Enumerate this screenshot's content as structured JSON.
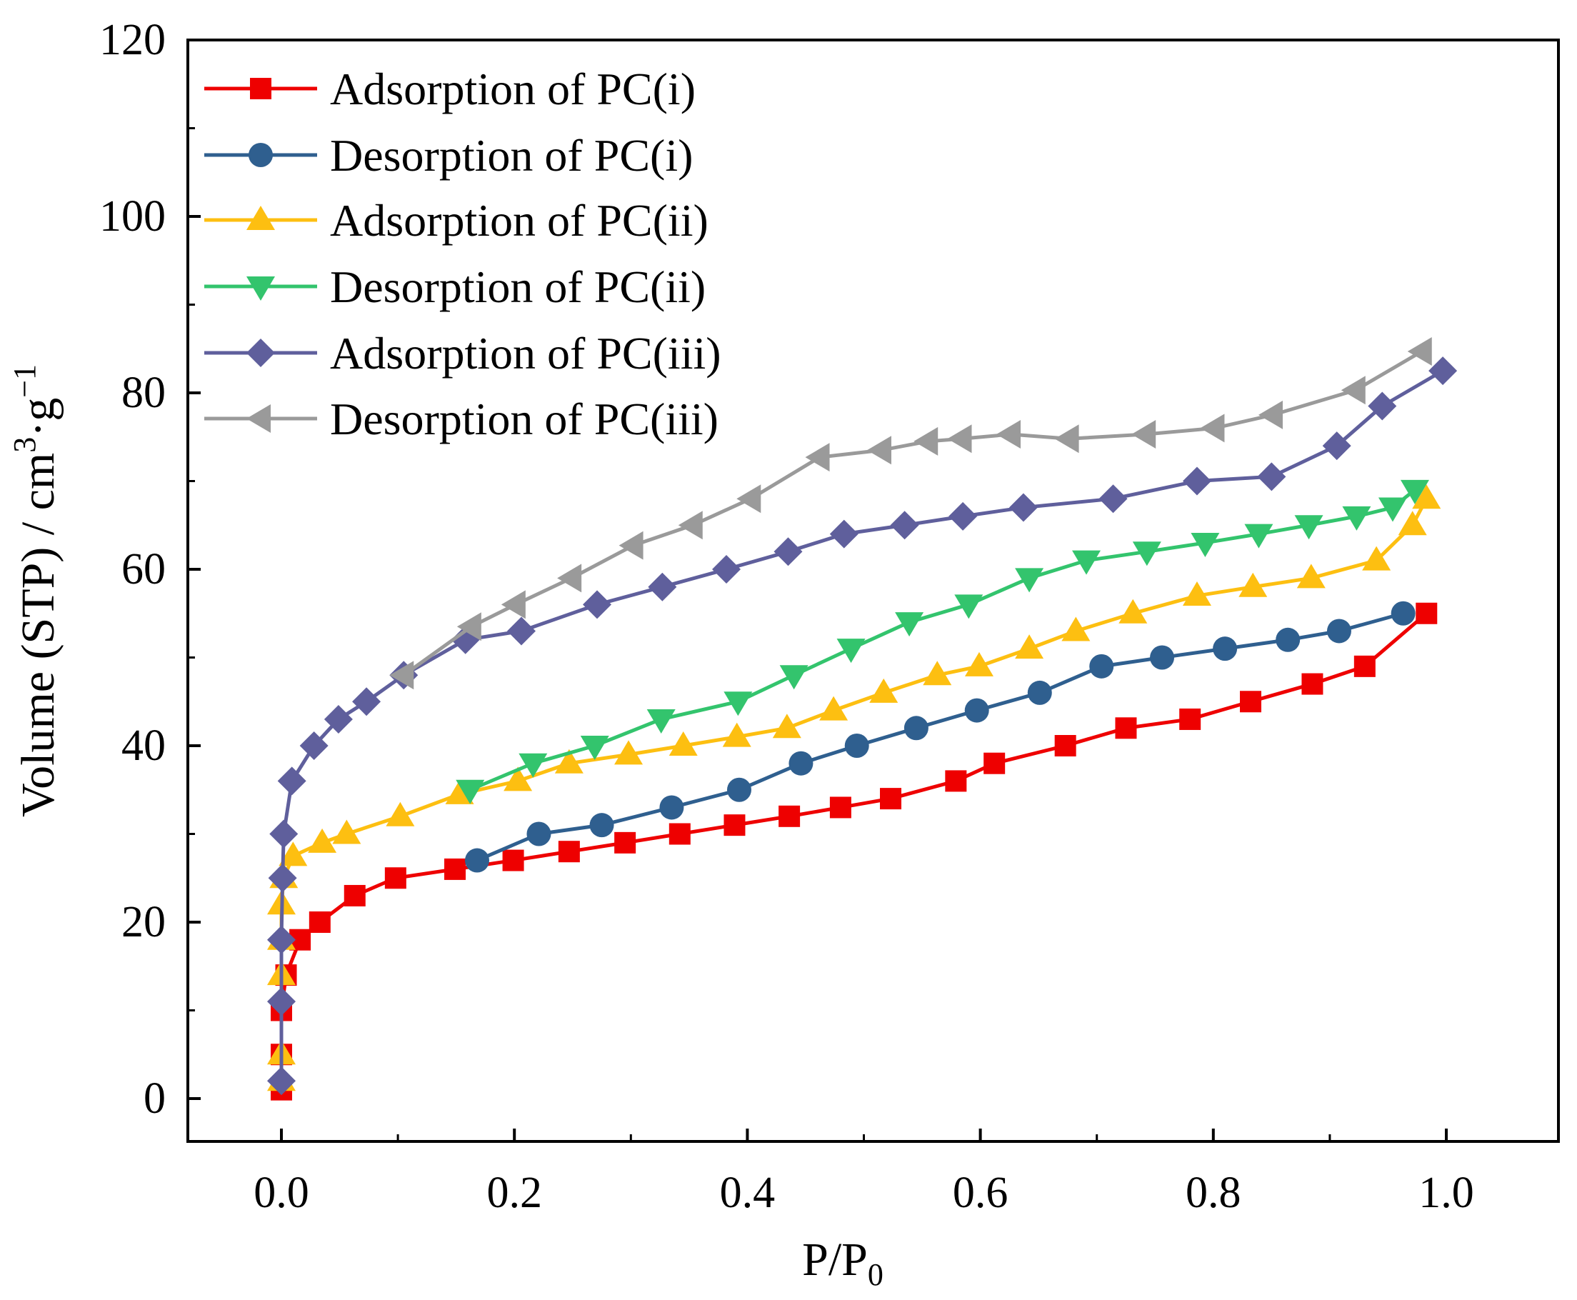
{
  "chart_data": {
    "type": "line",
    "title": "",
    "xlabel": "P/P",
    "xlabel_sub": "0",
    "ylabel": "Volume (STP) / cm",
    "ylabel_sup1": "3",
    "ylabel_mid": "·g",
    "ylabel_sup2": "−1",
    "xlim": [
      -0.08,
      1.1
    ],
    "ylim": [
      -5,
      120
    ],
    "xticks": [
      "0.0",
      "0.2",
      "0.4",
      "0.6",
      "0.8",
      "1.0"
    ],
    "xtick_values": [
      0,
      0.2,
      0.4,
      0.6,
      0.8,
      1.0
    ],
    "yticks": [
      "0",
      "20",
      "40",
      "60",
      "80",
      "100",
      "120"
    ],
    "ytick_values": [
      0,
      20,
      40,
      60,
      80,
      100,
      120
    ],
    "grid": false,
    "legend_placement": "top-left",
    "series": [
      {
        "name": "Adsorption of PC(i)",
        "color": "#ee0000",
        "marker": "square",
        "x": [
          0,
          0,
          0,
          0.004,
          0.016,
          0.033,
          0.063,
          0.098,
          0.149,
          0.199,
          0.247,
          0.295,
          0.342,
          0.389,
          0.436,
          0.48,
          0.523,
          0.579,
          0.612,
          0.673,
          0.725,
          0.78,
          0.832,
          0.885,
          0.93,
          0.983
        ],
        "y": [
          1,
          5,
          10,
          14,
          18,
          20,
          23,
          25,
          26,
          27,
          28,
          29,
          30,
          31,
          32,
          33,
          34,
          36,
          38,
          40,
          42,
          43,
          45,
          47,
          49,
          55
        ]
      },
      {
        "name": "Desorption of PC(i)",
        "color": "#2f5f8f",
        "marker": "circle",
        "x": [
          0.168,
          0.221,
          0.275,
          0.335,
          0.393,
          0.446,
          0.494,
          0.545,
          0.597,
          0.651,
          0.704,
          0.756,
          0.81,
          0.864,
          0.908,
          0.963
        ],
        "y": [
          27,
          30,
          31,
          33,
          35,
          38,
          40,
          42,
          44,
          46,
          49,
          50,
          51,
          52,
          53,
          55
        ]
      },
      {
        "name": "Adsorption of PC(ii)",
        "color": "#fdbf11",
        "marker": "triangle-up",
        "x": [
          0,
          0,
          0,
          0,
          0,
          0.002,
          0.01,
          0.035,
          0.056,
          0.102,
          0.153,
          0.203,
          0.247,
          0.298,
          0.345,
          0.391,
          0.434,
          0.474,
          0.517,
          0.563,
          0.599,
          0.642,
          0.682,
          0.731,
          0.786,
          0.834,
          0.884,
          0.94,
          0.971,
          0.983
        ],
        "y": [
          2,
          5,
          14,
          18,
          22,
          25,
          27.5,
          29,
          30,
          32,
          34.5,
          36,
          38,
          39,
          40,
          41,
          42,
          44,
          46,
          48,
          49,
          51,
          53,
          55,
          57,
          58,
          59,
          61,
          65,
          68
        ]
      },
      {
        "name": "Desorption of PC(ii)",
        "color": "#33c46d",
        "marker": "triangle-down",
        "x": [
          0.162,
          0.216,
          0.269,
          0.326,
          0.392,
          0.44,
          0.489,
          0.539,
          0.59,
          0.642,
          0.691,
          0.743,
          0.793,
          0.839,
          0.882,
          0.923,
          0.954,
          0.973
        ],
        "y": [
          35,
          38,
          40,
          43,
          45,
          48,
          51,
          54,
          56,
          59,
          61,
          62,
          63,
          64,
          65,
          66,
          67,
          69
        ]
      },
      {
        "name": "Adsorption of PC(iii)",
        "color": "#5f5f9c",
        "marker": "diamond",
        "x": [
          0,
          0,
          0,
          0.001,
          0.002,
          0.009,
          0.028,
          0.049,
          0.073,
          0.105,
          0.158,
          0.206,
          0.271,
          0.327,
          0.382,
          0.435,
          0.483,
          0.535,
          0.585,
          0.637,
          0.714,
          0.786,
          0.85,
          0.906,
          0.945,
          0.997
        ],
        "y": [
          2,
          11,
          18,
          25,
          30,
          36,
          40,
          43,
          45,
          48,
          52,
          53,
          56,
          58,
          60,
          62,
          64,
          65,
          66,
          67,
          68,
          70,
          70.5,
          74,
          78.5,
          82.5
        ]
      },
      {
        "name": "Desorption of PC(iii)",
        "color": "#9a9a9a",
        "marker": "triangle-left",
        "x": [
          0.105,
          0.163,
          0.201,
          0.249,
          0.302,
          0.353,
          0.403,
          0.462,
          0.515,
          0.555,
          0.584,
          0.626,
          0.676,
          0.742,
          0.801,
          0.851,
          0.922,
          0.979
        ],
        "y": [
          48,
          53.5,
          56,
          59,
          62.7,
          65,
          68,
          72.7,
          73.5,
          74.5,
          74.8,
          75.3,
          74.8,
          75.3,
          76,
          77.5,
          80.3,
          84.7
        ]
      }
    ]
  }
}
